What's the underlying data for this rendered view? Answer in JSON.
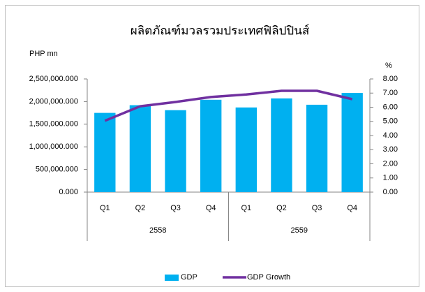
{
  "chart_data": {
    "type": "combo",
    "title": "ผลิตภัณฑ์มวลรวมประเทศฟิลิปปินส์",
    "y_label": "PHP  mn",
    "y2_label": "%",
    "categories": [
      "Q1",
      "Q2",
      "Q3",
      "Q4",
      "Q1",
      "Q2",
      "Q3",
      "Q4"
    ],
    "groups": [
      "2558",
      "2559"
    ],
    "series": [
      {
        "name": "GDP",
        "type": "bar",
        "axis": "y",
        "color": "#00b0f0",
        "values": [
          1750000,
          1920000,
          1810000,
          2040000,
          1870000,
          2070000,
          1930000,
          2190000
        ]
      },
      {
        "name": "GDP  Growth",
        "type": "line",
        "axis": "y2",
        "color": "#7030a0",
        "values": [
          5.04,
          6.07,
          6.37,
          6.72,
          6.9,
          7.16,
          7.16,
          6.57
        ]
      }
    ],
    "ylim": [
      0,
      2500000
    ],
    "yticks": [
      {
        "value": 0,
        "label": "0.000"
      },
      {
        "value": 500000,
        "label": "500,000.000"
      },
      {
        "value": 1000000,
        "label": "1,000,000.000"
      },
      {
        "value": 1500000,
        "label": "1,500,000.000"
      },
      {
        "value": 2000000,
        "label": "2,000,000.000"
      },
      {
        "value": 2500000,
        "label": "2,500,000.000"
      }
    ],
    "y2lim": [
      0,
      8
    ],
    "y2ticks": [
      {
        "value": 0,
        "label": "0.00"
      },
      {
        "value": 1,
        "label": "1.00"
      },
      {
        "value": 2,
        "label": "2.00"
      },
      {
        "value": 3,
        "label": "3.00"
      },
      {
        "value": 4,
        "label": "4.00"
      },
      {
        "value": 5,
        "label": "5.00"
      },
      {
        "value": 6,
        "label": "6.00"
      },
      {
        "value": 7,
        "label": "7.00"
      },
      {
        "value": 8,
        "label": "8.00"
      }
    ],
    "grid": false,
    "legend": "bottom"
  }
}
